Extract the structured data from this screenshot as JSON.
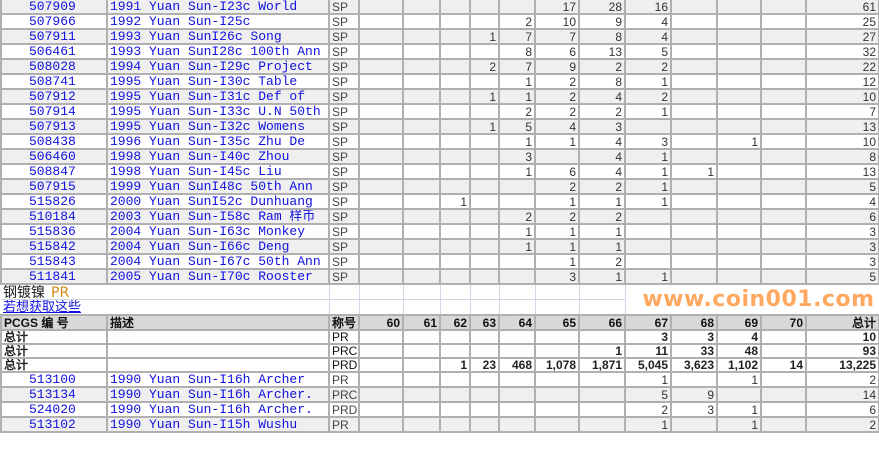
{
  "sp_rows": [
    {
      "id": "507909",
      "desc": "1991 Yuan Sun-I23c World",
      "grade": "SP",
      "counts": [
        "",
        "",
        "",
        "",
        "",
        "17",
        "28",
        "16",
        "",
        "",
        ""
      ],
      "total": "61"
    },
    {
      "id": "507966",
      "desc": "1992 Yuan Sun-I25c",
      "grade": "SP",
      "counts": [
        "",
        "",
        "",
        "",
        "2",
        "10",
        "9",
        "4",
        "",
        "",
        ""
      ],
      "total": "25"
    },
    {
      "id": "507911",
      "desc": "1993 Yuan SunI26c Song",
      "grade": "SP",
      "counts": [
        "",
        "",
        "",
        "1",
        "7",
        "7",
        "8",
        "4",
        "",
        "",
        ""
      ],
      "total": "27"
    },
    {
      "id": "506461",
      "desc": "1993 Yuan SunI28c 100th Ann",
      "grade": "SP",
      "counts": [
        "",
        "",
        "",
        "",
        "8",
        "6",
        "13",
        "5",
        "",
        "",
        ""
      ],
      "total": "32"
    },
    {
      "id": "508028",
      "desc": "1994 Yuan Sun-I29c Project",
      "grade": "SP",
      "counts": [
        "",
        "",
        "",
        "2",
        "7",
        "9",
        "2",
        "2",
        "",
        "",
        ""
      ],
      "total": "22"
    },
    {
      "id": "508741",
      "desc": "1995 Yuan Sun-I30c Table",
      "grade": "SP",
      "counts": [
        "",
        "",
        "",
        "",
        "1",
        "2",
        "8",
        "1",
        "",
        "",
        ""
      ],
      "total": "12"
    },
    {
      "id": "507912",
      "desc": "1995 Yuan Sun-I31c Def of",
      "grade": "SP",
      "counts": [
        "",
        "",
        "",
        "1",
        "1",
        "2",
        "4",
        "2",
        "",
        "",
        ""
      ],
      "total": "10"
    },
    {
      "id": "507914",
      "desc": "1995 Yuan Sun-I33c U.N 50th",
      "grade": "SP",
      "counts": [
        "",
        "",
        "",
        "",
        "2",
        "2",
        "2",
        "1",
        "",
        "",
        ""
      ],
      "total": "7"
    },
    {
      "id": "507913",
      "desc": "1995 Yuan Sun-I32c Womens",
      "grade": "SP",
      "counts": [
        "",
        "",
        "",
        "1",
        "5",
        "4",
        "3",
        "",
        "",
        "",
        ""
      ],
      "total": "13"
    },
    {
      "id": "508438",
      "desc": "1996 Yuan Sun-I35c Zhu De",
      "grade": "SP",
      "counts": [
        "",
        "",
        "",
        "",
        "1",
        "1",
        "4",
        "3",
        "",
        "1",
        ""
      ],
      "total": "10"
    },
    {
      "id": "506460",
      "desc": "1998 Yuan Sun-I40c Zhou",
      "grade": "SP",
      "counts": [
        "",
        "",
        "",
        "",
        "3",
        "",
        "4",
        "1",
        "",
        "",
        ""
      ],
      "total": "8"
    },
    {
      "id": "508847",
      "desc": "1998 Yuan Sun-I45c Liu",
      "grade": "SP",
      "counts": [
        "",
        "",
        "",
        "",
        "1",
        "6",
        "4",
        "1",
        "1",
        "",
        ""
      ],
      "total": "13"
    },
    {
      "id": "507915",
      "desc": "1999 Yuan SunI48c 50th Ann",
      "grade": "SP",
      "counts": [
        "",
        "",
        "",
        "",
        "",
        "2",
        "2",
        "1",
        "",
        "",
        ""
      ],
      "total": "5"
    },
    {
      "id": "515826",
      "desc": "2000 Yuan SunI52c Dunhuang",
      "grade": "SP",
      "counts": [
        "",
        "",
        "1",
        "",
        "",
        "1",
        "1",
        "1",
        "",
        "",
        ""
      ],
      "total": "4"
    },
    {
      "id": "510184",
      "desc": "2003 Yuan Sun-I58c Ram 样币",
      "grade": "SP",
      "counts": [
        "",
        "",
        "",
        "",
        "2",
        "2",
        "2",
        "",
        "",
        "",
        ""
      ],
      "total": "6"
    },
    {
      "id": "515836",
      "desc": "2004 Yuan Sun-I63c Monkey",
      "grade": "SP",
      "counts": [
        "",
        "",
        "",
        "",
        "1",
        "1",
        "1",
        "",
        "",
        "",
        ""
      ],
      "total": "3"
    },
    {
      "id": "515842",
      "desc": "2004 Yuan Sun-I66c Deng",
      "grade": "SP",
      "counts": [
        "",
        "",
        "",
        "",
        "1",
        "1",
        "1",
        "",
        "",
        "",
        ""
      ],
      "total": "3"
    },
    {
      "id": "515843",
      "desc": "2004 Yuan Sun-I67c 50th Ann",
      "grade": "SP",
      "counts": [
        "",
        "",
        "",
        "",
        "",
        "1",
        "2",
        "",
        "",
        "",
        ""
      ],
      "total": "3"
    },
    {
      "id": "511841",
      "desc": "2005 Yuan Sun-I70c Rooster",
      "grade": "SP",
      "counts": [
        "",
        "",
        "",
        "",
        "",
        "3",
        "1",
        "1",
        "",
        "",
        ""
      ],
      "total": "5"
    }
  ],
  "section": {
    "title": "钢镀镍",
    "title_suffix": "PR",
    "link": "若想获取这些"
  },
  "header": {
    "id": "PCGS 编 号",
    "desc": "描述",
    "grade": "称号",
    "grades": [
      "60",
      "61",
      "62",
      "63",
      "64",
      "65",
      "66",
      "67",
      "68",
      "69",
      "70"
    ],
    "total": "总计"
  },
  "total_rows": [
    {
      "label": "总计",
      "grade": "PR",
      "counts": [
        "",
        "",
        "",
        "",
        "",
        "",
        "",
        "3",
        "3",
        "4",
        ""
      ],
      "total": "10"
    },
    {
      "label": "总计",
      "grade": "PRC",
      "counts": [
        "",
        "",
        "",
        "",
        "",
        "",
        "1",
        "11",
        "33",
        "48",
        ""
      ],
      "total": "93"
    },
    {
      "label": "总计",
      "grade": "PRD",
      "counts": [
        "",
        "",
        "1",
        "23",
        "468",
        "1,078",
        "1,871",
        "5,045",
        "3,623",
        "1,102",
        "14"
      ],
      "total": "13,225"
    }
  ],
  "pr_rows": [
    {
      "id": "513100",
      "desc": "1990 Yuan Sun-I16h Archer",
      "grade": "PR",
      "counts": [
        "",
        "",
        "",
        "",
        "",
        "",
        "",
        "1",
        "",
        "1",
        ""
      ],
      "total": "2"
    },
    {
      "id": "513134",
      "desc": "1990 Yuan Sun-I16h Archer.",
      "grade": "PRC",
      "counts": [
        "",
        "",
        "",
        "",
        "",
        "",
        "",
        "5",
        "9",
        "",
        ""
      ],
      "total": "14"
    },
    {
      "id": "524020",
      "desc": "1990 Yuan Sun-I16h Archer.",
      "grade": "PRD",
      "counts": [
        "",
        "",
        "",
        "",
        "",
        "",
        "",
        "2",
        "3",
        "1",
        ""
      ],
      "total": "6"
    },
    {
      "id": "513102",
      "desc": "1990 Yuan Sun-I15h Wushu",
      "grade": "PR",
      "counts": [
        "",
        "",
        "",
        "",
        "",
        "",
        "",
        "1",
        "",
        "1",
        ""
      ],
      "total": "2"
    }
  ],
  "watermark": "www.coin001.com",
  "colors": {
    "link": "#1010e0",
    "grid": "#b0b0b0",
    "alt_row": "#efefef",
    "header_bg": "#d8d8d8",
    "watermark": "#ff963c"
  }
}
